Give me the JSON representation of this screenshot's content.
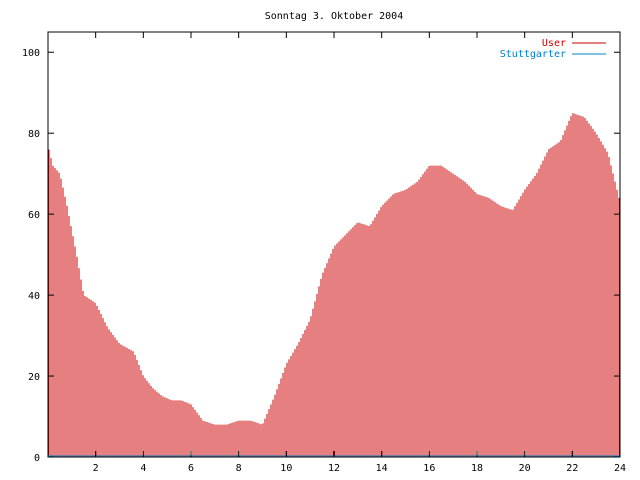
{
  "chart_data": {
    "type": "bar",
    "title": "Sonntag 3. Oktober 2004",
    "xlabel": "",
    "ylabel": "",
    "xlim": [
      0,
      24
    ],
    "ylim": [
      0,
      105
    ],
    "x_ticks": [
      2,
      4,
      6,
      8,
      10,
      12,
      14,
      16,
      18,
      20,
      22,
      24
    ],
    "x_tick_labels": [
      "2",
      "4",
      "6",
      "8",
      "10",
      "12",
      "14",
      "16",
      "18",
      "20",
      "22",
      "24"
    ],
    "y_ticks": [
      0,
      20,
      40,
      60,
      80,
      100
    ],
    "y_tick_labels": [
      "0",
      "20",
      "40",
      "60",
      "80",
      "100"
    ],
    "grid": false,
    "legend_position": "top-right",
    "series": [
      {
        "name": "User",
        "color": "#cc0000",
        "profile_x": [
          0,
          0.2,
          0.5,
          0.8,
          1.2,
          1.5,
          2.0,
          2.5,
          3.0,
          3.3,
          3.6,
          4.0,
          4.4,
          4.8,
          5.2,
          5.6,
          6.0,
          6.5,
          7.0,
          7.5,
          8.0,
          8.5,
          9.0,
          9.5,
          10.0,
          10.5,
          11.0,
          11.5,
          12.0,
          12.5,
          13.0,
          13.5,
          14.0,
          14.5,
          15.0,
          15.5,
          16.0,
          16.5,
          17.0,
          17.5,
          18.0,
          18.5,
          19.0,
          19.5,
          20.0,
          20.5,
          21.0,
          21.5,
          22.0,
          22.5,
          23.0,
          23.5,
          24.0
        ],
        "profile_y": [
          77,
          72,
          70,
          62,
          50,
          40,
          38,
          32,
          28,
          27,
          26,
          20,
          17,
          15,
          14,
          14,
          13,
          9,
          8,
          8,
          9,
          9,
          8,
          15,
          23,
          28,
          34,
          45,
          52,
          55,
          58,
          57,
          62,
          65,
          66,
          68,
          72,
          72,
          70,
          68,
          65,
          64,
          62,
          61,
          66,
          70,
          76,
          78,
          85,
          84,
          80,
          75,
          63
        ]
      },
      {
        "name": "Stuttgarter",
        "color": "#0080c0",
        "profile_x": [
          0,
          24
        ],
        "profile_y": [
          0,
          0
        ]
      }
    ]
  }
}
